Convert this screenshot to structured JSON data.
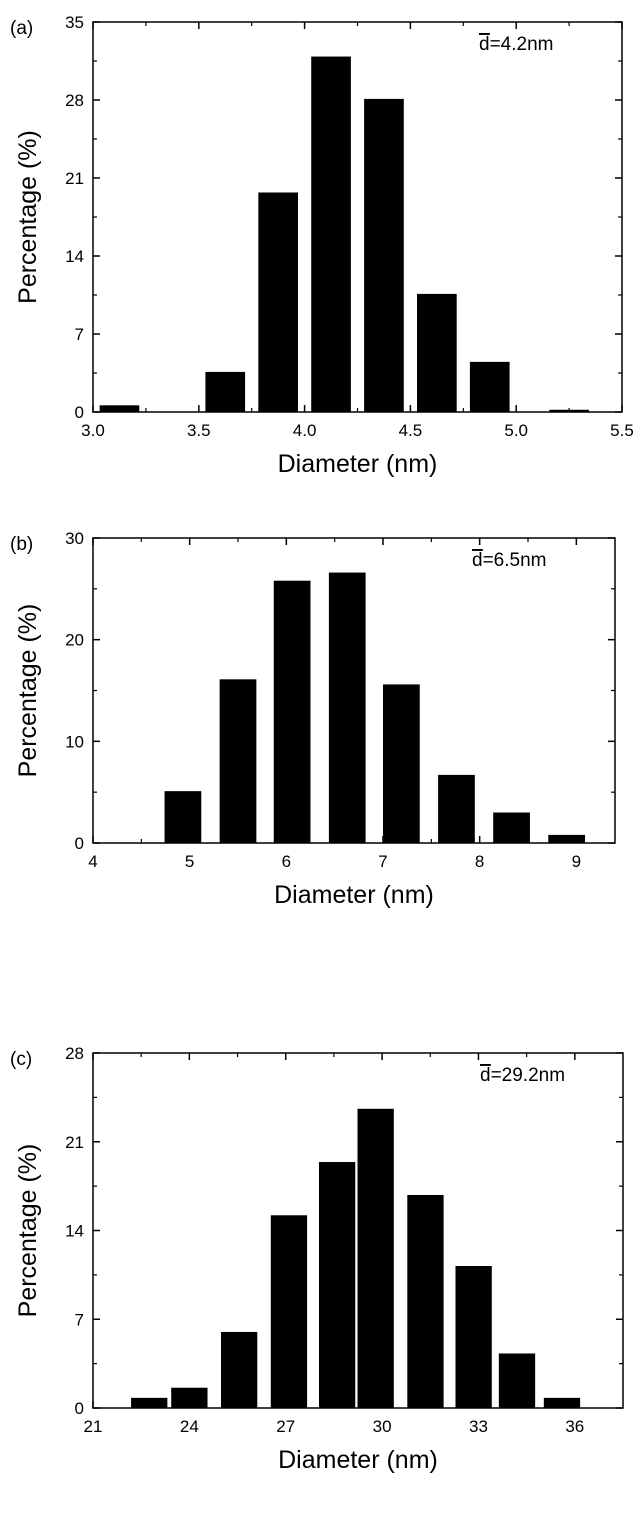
{
  "chart_data": [
    {
      "type": "bar",
      "panel_label": "(a)",
      "annotation": "d=4.2nm",
      "annotation_symbol": "d",
      "annotation_rest": "=4.2nm",
      "xlabel": "Diameter (nm)",
      "ylabel": "Percentage (%)",
      "xlim": [
        3.0,
        5.5
      ],
      "ylim": [
        0,
        35
      ],
      "xticks": [
        3.0,
        3.5,
        4.0,
        4.5,
        5.0,
        5.5
      ],
      "xtick_labels": [
        "3.0",
        "3.5",
        "4.0",
        "4.5",
        "5.0",
        "5.5"
      ],
      "yticks": [
        0,
        7,
        14,
        21,
        28,
        35
      ],
      "ytick_labels": [
        "0",
        "7",
        "14",
        "21",
        "28",
        "35"
      ],
      "bar_width": 0.1875,
      "bars": [
        {
          "x": 3.125,
          "value": 0.6
        },
        {
          "x": 3.625,
          "value": 3.6
        },
        {
          "x": 3.875,
          "value": 19.7
        },
        {
          "x": 4.125,
          "value": 31.9
        },
        {
          "x": 4.375,
          "value": 28.1
        },
        {
          "x": 4.625,
          "value": 10.6
        },
        {
          "x": 4.875,
          "value": 4.5
        },
        {
          "x": 5.25,
          "value": 0.2
        }
      ],
      "grid": false,
      "color": "#000000"
    },
    {
      "type": "bar",
      "panel_label": "(b)",
      "annotation": "d=6.5nm",
      "annotation_symbol": "d",
      "annotation_rest": "=6.5nm",
      "xlabel": "Diameter (nm)",
      "ylabel": "Percentage (%)",
      "xlim": [
        4,
        9.4
      ],
      "ylim": [
        0,
        30
      ],
      "xticks": [
        4,
        5,
        6,
        7,
        8,
        9
      ],
      "xtick_labels": [
        "4",
        "5",
        "6",
        "7",
        "8",
        "9"
      ],
      "yticks": [
        0,
        10,
        20,
        30
      ],
      "ytick_labels": [
        "0",
        "10",
        "20",
        "30"
      ],
      "bar_width": 0.38,
      "bars": [
        {
          "x": 4.93,
          "value": 5.1
        },
        {
          "x": 5.5,
          "value": 16.1
        },
        {
          "x": 6.06,
          "value": 25.8
        },
        {
          "x": 6.63,
          "value": 26.6
        },
        {
          "x": 7.19,
          "value": 15.6
        },
        {
          "x": 7.76,
          "value": 6.7
        },
        {
          "x": 8.33,
          "value": 3.0
        },
        {
          "x": 8.9,
          "value": 0.8
        }
      ],
      "grid": false,
      "color": "#000000"
    },
    {
      "type": "bar",
      "panel_label": "(c)",
      "annotation": "d=29.2nm",
      "annotation_symbol": "d",
      "annotation_rest": "=29.2nm",
      "xlabel": "Diameter (nm)",
      "ylabel": "Percentage (%)",
      "xlim": [
        21,
        37.5
      ],
      "ylim": [
        0,
        28
      ],
      "xticks": [
        21,
        24,
        27,
        30,
        33,
        36
      ],
      "xtick_labels": [
        "21",
        "24",
        "27",
        "30",
        "33",
        "36"
      ],
      "yticks": [
        0,
        7,
        14,
        21,
        28
      ],
      "ytick_labels": [
        "0",
        "7",
        "14",
        "21",
        "28"
      ],
      "bar_width": 1.13,
      "bars": [
        {
          "x": 22.75,
          "value": 0.8
        },
        {
          "x": 24.0,
          "value": 1.6
        },
        {
          "x": 25.55,
          "value": 6.0
        },
        {
          "x": 27.1,
          "value": 15.2
        },
        {
          "x": 28.6,
          "value": 19.4
        },
        {
          "x": 29.8,
          "value": 23.6
        },
        {
          "x": 31.35,
          "value": 16.8
        },
        {
          "x": 32.85,
          "value": 11.2
        },
        {
          "x": 34.2,
          "value": 4.3
        },
        {
          "x": 35.6,
          "value": 0.8
        }
      ],
      "grid": false,
      "color": "#000000"
    }
  ]
}
